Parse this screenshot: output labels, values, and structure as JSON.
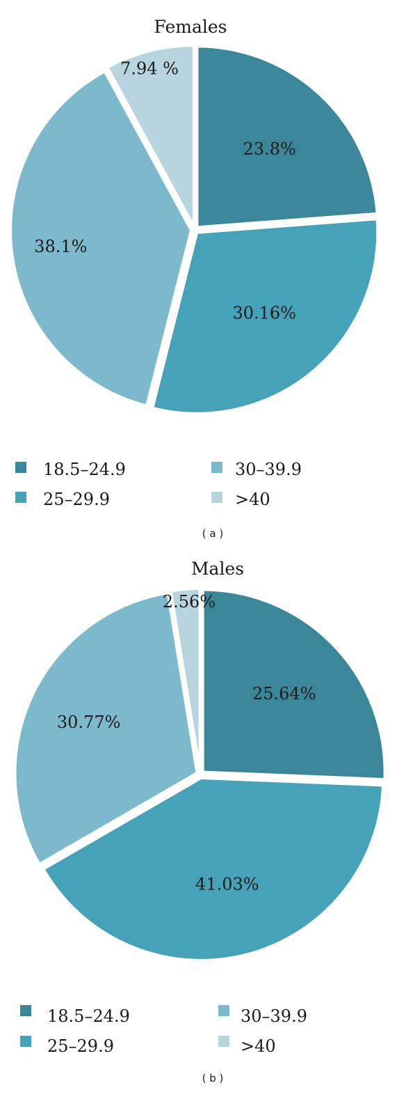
{
  "colors": {
    "c18": "#3b8799",
    "c25": "#46a2b8",
    "c30": "#7db9cd",
    "c40": "#b7d4df"
  },
  "chart_data": [
    {
      "type": "pie",
      "title": "Females",
      "caption": "( a )",
      "categories": [
        "18.5–24.9",
        "25–29.9",
        "30–39.9",
        ">40"
      ],
      "values": [
        23.8,
        30.16,
        38.1,
        7.94
      ],
      "labels": [
        "23.8%",
        "30.16%",
        "38.1%",
        "7.94 %"
      ],
      "legend": "bottom"
    },
    {
      "type": "pie",
      "title": "Males",
      "caption": "( b )",
      "categories": [
        "18.5–24.9",
        "25–29.9",
        "30–39.9",
        ">40"
      ],
      "values": [
        25.64,
        41.03,
        30.77,
        2.56
      ],
      "labels": [
        "25.64%",
        "41.03%",
        "30.77%",
        "2.56%"
      ],
      "legend": "bottom"
    }
  ]
}
